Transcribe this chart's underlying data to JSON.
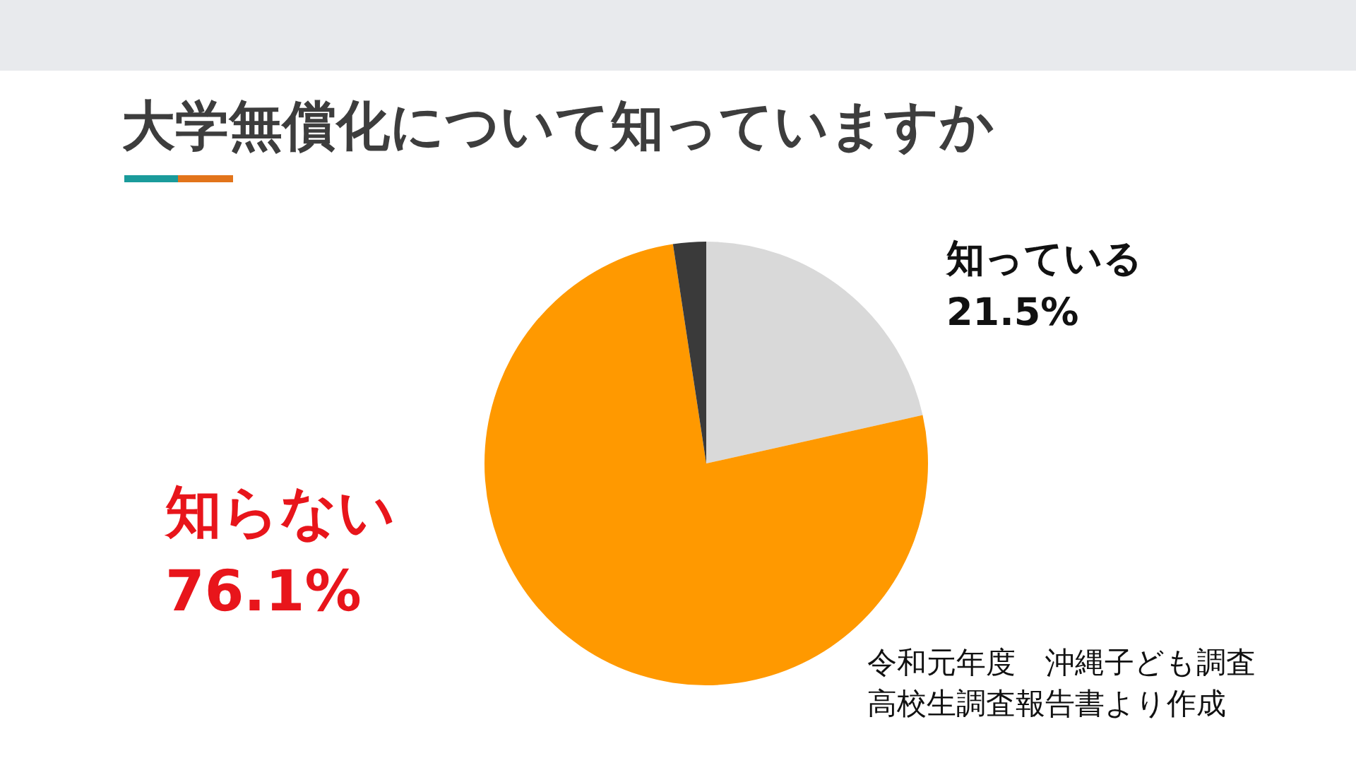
{
  "chart_data": {
    "type": "pie",
    "title": "大学無償化について知っていますか",
    "categories": [
      "知っている",
      "知らない",
      null
    ],
    "values": [
      21.5,
      76.1,
      2.4
    ],
    "colors": [
      "#d9d9d9",
      "#ff9900",
      "#3a3a3a"
    ],
    "value_labels": [
      "21.5%",
      "76.1%",
      null
    ],
    "legend": false,
    "annotations": [
      "令和元年度　沖縄子ども調査",
      "高校生調査報告書より作成"
    ]
  }
}
